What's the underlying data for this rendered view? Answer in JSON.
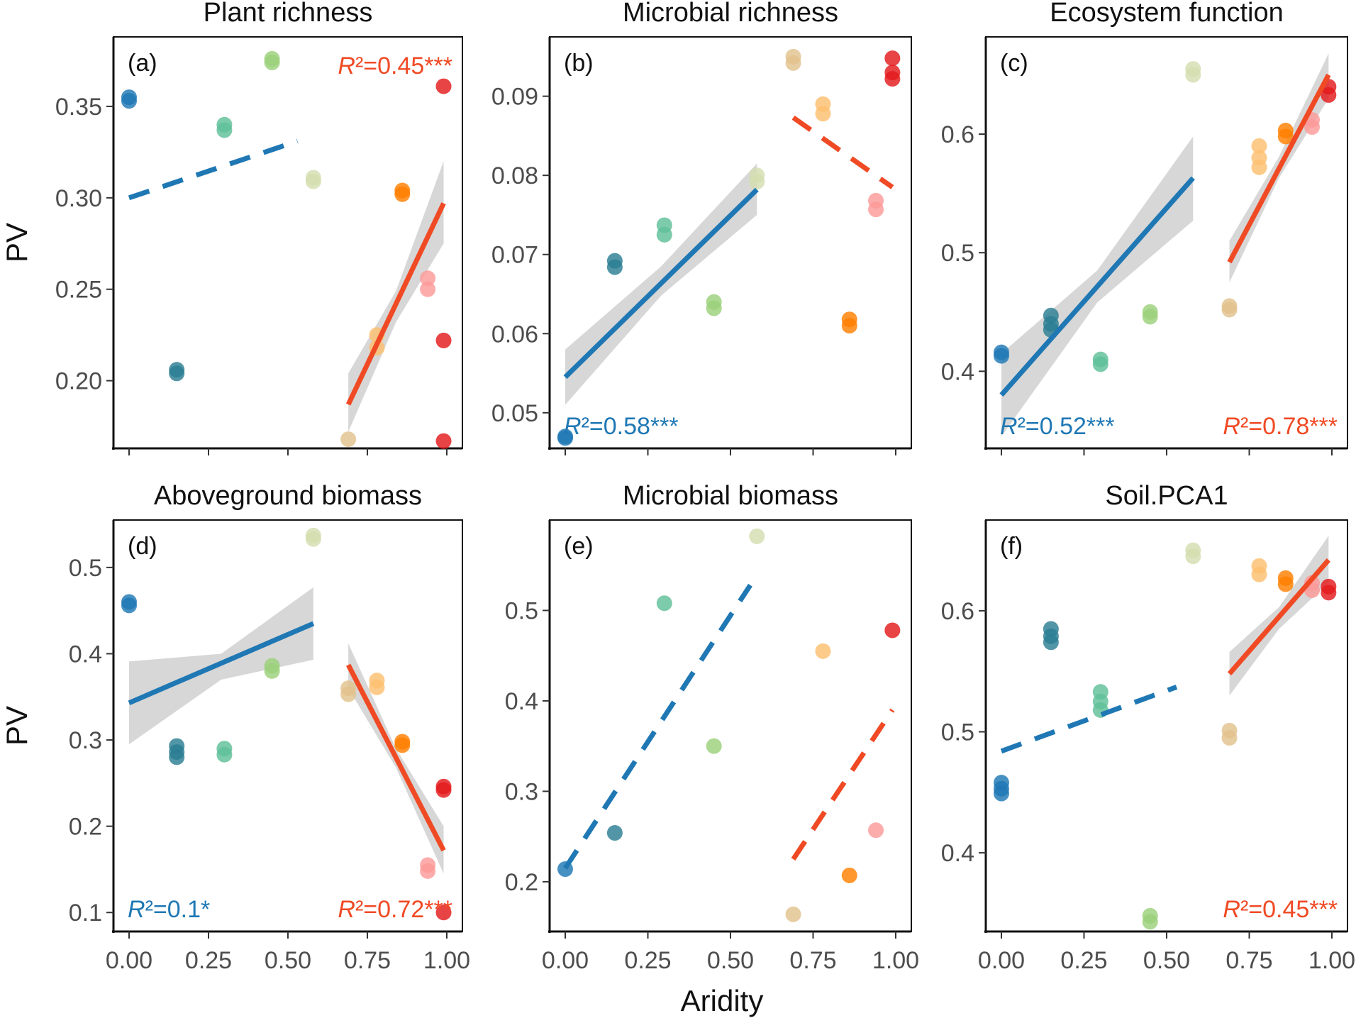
{
  "figure": {
    "ylabel": "PV",
    "xlabel": "Aridity",
    "colors": {
      "blue": "#1f78b4",
      "red": "#f04a25",
      "ribbon": "#bdbdbd"
    },
    "aridity_colors": [
      "#1f78b4",
      "#2b7e93",
      "#3c9a8e",
      "#5fbf99",
      "#9bd17a",
      "#d3deb0",
      "#e2c28e",
      "#fdbf6f",
      "#ff7f00",
      "#fb9a99",
      "#e31a1c"
    ]
  },
  "chart_data": [
    {
      "panel": "(a)",
      "title": "Plant richness",
      "type": "scatter",
      "xlim": [
        0,
        1
      ],
      "ylim": [
        0.163,
        0.388
      ],
      "yticks": [
        0.2,
        0.25,
        0.3,
        0.35
      ],
      "ytick_labels": [
        "0.20",
        "0.25",
        "0.30",
        "0.35"
      ],
      "xticks": [
        0,
        0.25,
        0.5,
        0.75,
        1
      ],
      "xtick_labels": [
        "0.00",
        "0.25",
        "0.50",
        "0.75",
        "1.00"
      ],
      "show_x_ticks": false,
      "show_ylabel": true,
      "points": [
        {
          "x": 0.0,
          "y": 0.355,
          "c": 0
        },
        {
          "x": 0.0,
          "y": 0.353,
          "c": 0
        },
        {
          "x": 0.15,
          "y": 0.206,
          "c": 1
        },
        {
          "x": 0.15,
          "y": 0.204,
          "c": 1
        },
        {
          "x": 0.3,
          "y": 0.34,
          "c": 3
        },
        {
          "x": 0.3,
          "y": 0.337,
          "c": 3
        },
        {
          "x": 0.45,
          "y": 0.376,
          "c": 4
        },
        {
          "x": 0.45,
          "y": 0.374,
          "c": 4
        },
        {
          "x": 0.58,
          "y": 0.311,
          "c": 5
        },
        {
          "x": 0.58,
          "y": 0.309,
          "c": 5
        },
        {
          "x": 0.69,
          "y": 0.168,
          "c": 6
        },
        {
          "x": 0.78,
          "y": 0.225,
          "c": 7
        },
        {
          "x": 0.78,
          "y": 0.218,
          "c": 7
        },
        {
          "x": 0.86,
          "y": 0.304,
          "c": 8
        },
        {
          "x": 0.86,
          "y": 0.302,
          "c": 8
        },
        {
          "x": 0.94,
          "y": 0.256,
          "c": 9
        },
        {
          "x": 0.94,
          "y": 0.25,
          "c": 9
        },
        {
          "x": 0.99,
          "y": 0.361,
          "c": 10
        },
        {
          "x": 0.99,
          "y": 0.222,
          "c": 10
        },
        {
          "x": 0.99,
          "y": 0.167,
          "c": 10
        }
      ],
      "fits": [
        {
          "x": [
            0.0,
            0.53
          ],
          "y": [
            0.3,
            0.331
          ],
          "color": "blue",
          "dashed": true
        },
        {
          "x": [
            0.69,
            0.99
          ],
          "y": [
            0.187,
            0.297
          ],
          "color": "red",
          "dashed": false,
          "ribbon": {
            "x": [
              0.69,
              0.84,
              0.99
            ],
            "lo": [
              0.172,
              0.232,
              0.275
            ],
            "hi": [
              0.204,
              0.249,
              0.32
            ]
          }
        }
      ],
      "labels": [
        {
          "text": "R²=0.45***",
          "color": "red",
          "pos": "top-right"
        }
      ]
    },
    {
      "panel": "(b)",
      "title": "Microbial richness",
      "type": "scatter",
      "xlim": [
        0,
        1
      ],
      "ylim": [
        0.0455,
        0.0975
      ],
      "yticks": [
        0.05,
        0.06,
        0.07,
        0.08,
        0.09
      ],
      "ytick_labels": [
        "0.05",
        "0.06",
        "0.07",
        "0.08",
        "0.09"
      ],
      "xticks": [
        0,
        0.25,
        0.5,
        0.75,
        1
      ],
      "xtick_labels": [
        "0.00",
        "0.25",
        "0.50",
        "0.75",
        "1.00"
      ],
      "show_x_ticks": false,
      "show_ylabel": false,
      "points": [
        {
          "x": 0.0,
          "y": 0.047,
          "c": 0
        },
        {
          "x": 0.0,
          "y": 0.0468,
          "c": 0
        },
        {
          "x": 0.15,
          "y": 0.0692,
          "c": 1
        },
        {
          "x": 0.15,
          "y": 0.0684,
          "c": 1
        },
        {
          "x": 0.3,
          "y": 0.0737,
          "c": 3
        },
        {
          "x": 0.3,
          "y": 0.0725,
          "c": 3
        },
        {
          "x": 0.45,
          "y": 0.064,
          "c": 4
        },
        {
          "x": 0.45,
          "y": 0.0632,
          "c": 4
        },
        {
          "x": 0.58,
          "y": 0.08,
          "c": 5
        },
        {
          "x": 0.58,
          "y": 0.0792,
          "c": 5
        },
        {
          "x": 0.69,
          "y": 0.095,
          "c": 6
        },
        {
          "x": 0.69,
          "y": 0.0942,
          "c": 6
        },
        {
          "x": 0.78,
          "y": 0.089,
          "c": 7
        },
        {
          "x": 0.78,
          "y": 0.0878,
          "c": 7
        },
        {
          "x": 0.86,
          "y": 0.0618,
          "c": 8
        },
        {
          "x": 0.86,
          "y": 0.061,
          "c": 8
        },
        {
          "x": 0.94,
          "y": 0.0768,
          "c": 9
        },
        {
          "x": 0.94,
          "y": 0.0757,
          "c": 9
        },
        {
          "x": 0.99,
          "y": 0.0948,
          "c": 10
        },
        {
          "x": 0.99,
          "y": 0.093,
          "c": 10
        },
        {
          "x": 0.99,
          "y": 0.0922,
          "c": 10
        }
      ],
      "fits": [
        {
          "x": [
            0.0,
            0.58
          ],
          "y": [
            0.0545,
            0.0782
          ],
          "color": "blue",
          "dashed": false,
          "ribbon": {
            "x": [
              0.0,
              0.29,
              0.58
            ],
            "lo": [
              0.051,
              0.0648,
              0.075
            ],
            "hi": [
              0.058,
              0.0685,
              0.0815
            ]
          }
        },
        {
          "x": [
            0.69,
            0.99
          ],
          "y": [
            0.0873,
            0.0785
          ],
          "color": "red",
          "dashed": true
        }
      ],
      "labels": [
        {
          "text": "R²=0.58***",
          "color": "blue",
          "pos": "bottom-left"
        }
      ]
    },
    {
      "panel": "(c)",
      "title": "Ecosystem function",
      "type": "scatter",
      "xlim": [
        0,
        1
      ],
      "ylim": [
        0.335,
        0.682
      ],
      "yticks": [
        0.4,
        0.5,
        0.6
      ],
      "ytick_labels": [
        "0.4",
        "0.5",
        "0.6"
      ],
      "xticks": [
        0,
        0.25,
        0.5,
        0.75,
        1
      ],
      "xtick_labels": [
        "0.00",
        "0.25",
        "0.50",
        "0.75",
        "1.00"
      ],
      "show_x_ticks": false,
      "show_ylabel": false,
      "points": [
        {
          "x": 0.0,
          "y": 0.416,
          "c": 0
        },
        {
          "x": 0.0,
          "y": 0.413,
          "c": 0
        },
        {
          "x": 0.15,
          "y": 0.447,
          "c": 1
        },
        {
          "x": 0.15,
          "y": 0.44,
          "c": 1
        },
        {
          "x": 0.15,
          "y": 0.435,
          "c": 1
        },
        {
          "x": 0.3,
          "y": 0.41,
          "c": 3
        },
        {
          "x": 0.3,
          "y": 0.406,
          "c": 3
        },
        {
          "x": 0.45,
          "y": 0.45,
          "c": 4
        },
        {
          "x": 0.45,
          "y": 0.446,
          "c": 4
        },
        {
          "x": 0.58,
          "y": 0.655,
          "c": 5
        },
        {
          "x": 0.58,
          "y": 0.65,
          "c": 5
        },
        {
          "x": 0.69,
          "y": 0.455,
          "c": 6
        },
        {
          "x": 0.69,
          "y": 0.452,
          "c": 6
        },
        {
          "x": 0.78,
          "y": 0.59,
          "c": 7
        },
        {
          "x": 0.78,
          "y": 0.58,
          "c": 7
        },
        {
          "x": 0.78,
          "y": 0.572,
          "c": 7
        },
        {
          "x": 0.86,
          "y": 0.603,
          "c": 8
        },
        {
          "x": 0.86,
          "y": 0.598,
          "c": 8
        },
        {
          "x": 0.94,
          "y": 0.612,
          "c": 9
        },
        {
          "x": 0.94,
          "y": 0.606,
          "c": 9
        },
        {
          "x": 0.99,
          "y": 0.64,
          "c": 10
        },
        {
          "x": 0.99,
          "y": 0.633,
          "c": 10
        }
      ],
      "fits": [
        {
          "x": [
            0.0,
            0.58
          ],
          "y": [
            0.38,
            0.563
          ],
          "color": "blue",
          "dashed": false,
          "ribbon": {
            "x": [
              0.0,
              0.29,
              0.58
            ],
            "lo": [
              0.345,
              0.458,
              0.527
            ],
            "hi": [
              0.415,
              0.485,
              0.598
            ]
          }
        },
        {
          "x": [
            0.69,
            0.99
          ],
          "y": [
            0.492,
            0.65
          ],
          "color": "red",
          "dashed": false,
          "ribbon": {
            "x": [
              0.69,
              0.84,
              0.99
            ],
            "lo": [
              0.475,
              0.563,
              0.63
            ],
            "hi": [
              0.51,
              0.581,
              0.668
            ]
          }
        }
      ],
      "labels": [
        {
          "text": "R²=0.52***",
          "color": "blue",
          "pos": "bottom-left"
        },
        {
          "text": "R²=0.78***",
          "color": "red",
          "pos": "bottom-right"
        }
      ]
    },
    {
      "panel": "(d)",
      "title": "Aboveground biomass",
      "type": "scatter",
      "xlim": [
        0,
        1
      ],
      "ylim": [
        0.078,
        0.555
      ],
      "yticks": [
        0.1,
        0.2,
        0.3,
        0.4,
        0.5
      ],
      "ytick_labels": [
        "0.1",
        "0.2",
        "0.3",
        "0.4",
        "0.5"
      ],
      "xticks": [
        0,
        0.25,
        0.5,
        0.75,
        1
      ],
      "xtick_labels": [
        "0.00",
        "0.25",
        "0.50",
        "0.75",
        "1.00"
      ],
      "show_x_ticks": true,
      "show_ylabel": true,
      "points": [
        {
          "x": 0.0,
          "y": 0.46,
          "c": 0
        },
        {
          "x": 0.0,
          "y": 0.456,
          "c": 0
        },
        {
          "x": 0.15,
          "y": 0.293,
          "c": 1
        },
        {
          "x": 0.15,
          "y": 0.286,
          "c": 1
        },
        {
          "x": 0.15,
          "y": 0.28,
          "c": 1
        },
        {
          "x": 0.3,
          "y": 0.29,
          "c": 3
        },
        {
          "x": 0.3,
          "y": 0.283,
          "c": 3
        },
        {
          "x": 0.45,
          "y": 0.386,
          "c": 4
        },
        {
          "x": 0.45,
          "y": 0.38,
          "c": 4
        },
        {
          "x": 0.58,
          "y": 0.537,
          "c": 5
        },
        {
          "x": 0.58,
          "y": 0.533,
          "c": 5
        },
        {
          "x": 0.69,
          "y": 0.36,
          "c": 6
        },
        {
          "x": 0.69,
          "y": 0.353,
          "c": 6
        },
        {
          "x": 0.78,
          "y": 0.369,
          "c": 7
        },
        {
          "x": 0.78,
          "y": 0.361,
          "c": 7
        },
        {
          "x": 0.86,
          "y": 0.298,
          "c": 8
        },
        {
          "x": 0.86,
          "y": 0.294,
          "c": 8
        },
        {
          "x": 0.94,
          "y": 0.155,
          "c": 9
        },
        {
          "x": 0.94,
          "y": 0.148,
          "c": 9
        },
        {
          "x": 0.99,
          "y": 0.246,
          "c": 10
        },
        {
          "x": 0.99,
          "y": 0.242,
          "c": 10
        },
        {
          "x": 0.99,
          "y": 0.1,
          "c": 10
        }
      ],
      "fits": [
        {
          "x": [
            0.0,
            0.58
          ],
          "y": [
            0.343,
            0.435
          ],
          "color": "blue",
          "dashed": false,
          "ribbon": {
            "x": [
              0.0,
              0.29,
              0.58
            ],
            "lo": [
              0.295,
              0.37,
              0.393
            ],
            "hi": [
              0.391,
              0.4,
              0.477
            ]
          }
        },
        {
          "x": [
            0.69,
            0.99
          ],
          "y": [
            0.387,
            0.172
          ],
          "color": "red",
          "dashed": false,
          "ribbon": {
            "x": [
              0.69,
              0.84,
              0.99
            ],
            "lo": [
              0.36,
              0.268,
              0.145
            ],
            "hi": [
              0.412,
              0.29,
              0.2
            ]
          }
        }
      ],
      "labels": [
        {
          "text": "R²=0.1*",
          "color": "blue",
          "pos": "bottom-left"
        },
        {
          "text": "R²=0.72***",
          "color": "red",
          "pos": "bottom-right"
        }
      ]
    },
    {
      "panel": "(e)",
      "title": "Microbial biomass",
      "type": "scatter",
      "xlim": [
        0,
        1
      ],
      "ylim": [
        0.145,
        0.6
      ],
      "yticks": [
        0.2,
        0.3,
        0.4,
        0.5
      ],
      "ytick_labels": [
        "0.2",
        "0.3",
        "0.4",
        "0.5"
      ],
      "xticks": [
        0,
        0.25,
        0.5,
        0.75,
        1
      ],
      "xtick_labels": [
        "0.00",
        "0.25",
        "0.50",
        "0.75",
        "1.00"
      ],
      "show_x_ticks": true,
      "show_ylabel": false,
      "points": [
        {
          "x": 0.0,
          "y": 0.214,
          "c": 0
        },
        {
          "x": 0.15,
          "y": 0.254,
          "c": 1
        },
        {
          "x": 0.3,
          "y": 0.508,
          "c": 3
        },
        {
          "x": 0.45,
          "y": 0.35,
          "c": 4
        },
        {
          "x": 0.58,
          "y": 0.582,
          "c": 5
        },
        {
          "x": 0.69,
          "y": 0.164,
          "c": 6
        },
        {
          "x": 0.78,
          "y": 0.455,
          "c": 7
        },
        {
          "x": 0.86,
          "y": 0.207,
          "c": 8
        },
        {
          "x": 0.94,
          "y": 0.257,
          "c": 9
        },
        {
          "x": 0.99,
          "y": 0.478,
          "c": 10
        }
      ],
      "fits": [
        {
          "x": [
            0.0,
            0.56
          ],
          "y": [
            0.215,
            0.528
          ],
          "color": "blue",
          "dashed": true
        },
        {
          "x": [
            0.69,
            0.99
          ],
          "y": [
            0.225,
            0.39
          ],
          "color": "red",
          "dashed": true
        }
      ],
      "labels": []
    },
    {
      "panel": "(f)",
      "title": "Soil.PCA1",
      "type": "scatter",
      "xlim": [
        0,
        1
      ],
      "ylim": [
        0.335,
        0.675
      ],
      "yticks": [
        0.4,
        0.5,
        0.6
      ],
      "ytick_labels": [
        "0.4",
        "0.5",
        "0.6"
      ],
      "xticks": [
        0,
        0.25,
        0.5,
        0.75,
        1
      ],
      "xtick_labels": [
        "0.00",
        "0.25",
        "0.50",
        "0.75",
        "1.00"
      ],
      "show_x_ticks": true,
      "show_ylabel": false,
      "points": [
        {
          "x": 0.0,
          "y": 0.458,
          "c": 0
        },
        {
          "x": 0.0,
          "y": 0.453,
          "c": 0
        },
        {
          "x": 0.0,
          "y": 0.449,
          "c": 0
        },
        {
          "x": 0.15,
          "y": 0.585,
          "c": 1
        },
        {
          "x": 0.15,
          "y": 0.579,
          "c": 1
        },
        {
          "x": 0.15,
          "y": 0.574,
          "c": 1
        },
        {
          "x": 0.3,
          "y": 0.533,
          "c": 3
        },
        {
          "x": 0.3,
          "y": 0.525,
          "c": 3
        },
        {
          "x": 0.3,
          "y": 0.518,
          "c": 3
        },
        {
          "x": 0.45,
          "y": 0.348,
          "c": 4
        },
        {
          "x": 0.45,
          "y": 0.343,
          "c": 4
        },
        {
          "x": 0.58,
          "y": 0.65,
          "c": 5
        },
        {
          "x": 0.58,
          "y": 0.645,
          "c": 5
        },
        {
          "x": 0.69,
          "y": 0.501,
          "c": 6
        },
        {
          "x": 0.69,
          "y": 0.495,
          "c": 6
        },
        {
          "x": 0.78,
          "y": 0.637,
          "c": 7
        },
        {
          "x": 0.78,
          "y": 0.63,
          "c": 7
        },
        {
          "x": 0.86,
          "y": 0.627,
          "c": 8
        },
        {
          "x": 0.86,
          "y": 0.622,
          "c": 8
        },
        {
          "x": 0.94,
          "y": 0.623,
          "c": 9
        },
        {
          "x": 0.94,
          "y": 0.617,
          "c": 9
        },
        {
          "x": 0.99,
          "y": 0.62,
          "c": 10
        },
        {
          "x": 0.99,
          "y": 0.615,
          "c": 10
        }
      ],
      "fits": [
        {
          "x": [
            0.0,
            0.53
          ],
          "y": [
            0.484,
            0.537
          ],
          "color": "blue",
          "dashed": true
        },
        {
          "x": [
            0.69,
            0.99
          ],
          "y": [
            0.548,
            0.642
          ],
          "color": "red",
          "dashed": false,
          "ribbon": {
            "x": [
              0.69,
              0.84,
              0.99
            ],
            "lo": [
              0.53,
              0.585,
              0.623
            ],
            "hi": [
              0.566,
              0.603,
              0.662
            ]
          }
        }
      ],
      "labels": [
        {
          "text": "R²=0.45***",
          "color": "red",
          "pos": "bottom-right"
        }
      ]
    }
  ]
}
